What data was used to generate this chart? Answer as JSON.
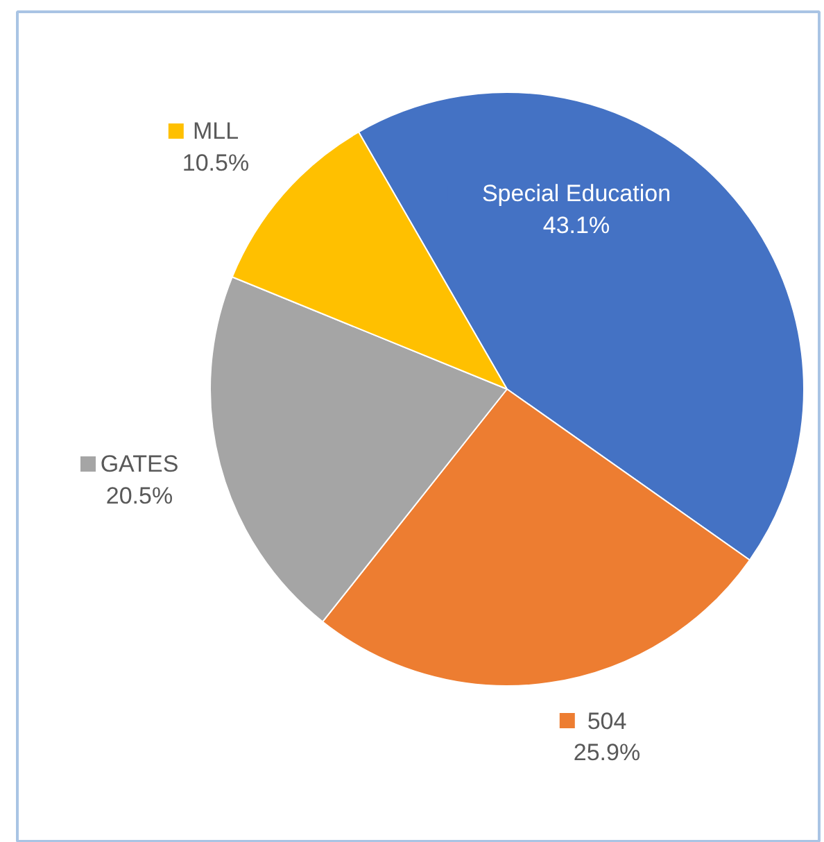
{
  "chart_data": {
    "type": "pie",
    "categories": [
      "Special Education",
      "504",
      "GATES",
      "MLL"
    ],
    "values": [
      43.1,
      25.9,
      20.5,
      10.5
    ],
    "colors": [
      "#4472c4",
      "#ed7d31",
      "#a5a5a5",
      "#ffc000"
    ],
    "value_labels": [
      "43.1%",
      "25.9%",
      "20.5%",
      "10.5%"
    ],
    "legend": "left"
  }
}
